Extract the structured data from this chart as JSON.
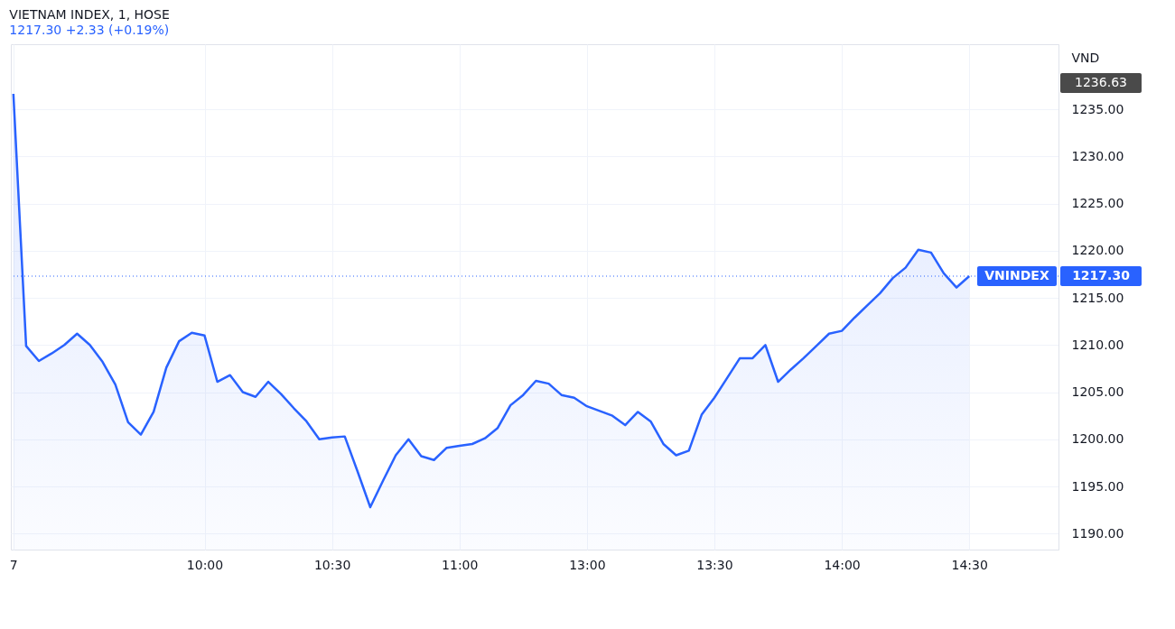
{
  "chart_data": {
    "type": "area",
    "title": "VIETNAM INDEX, 1, HOSE",
    "subtitle": "1217.30  +2.33 (+0.19%)",
    "ylabel": "VND",
    "categories": [
      "7",
      null,
      null,
      null,
      null,
      null,
      null,
      null,
      null,
      null,
      null,
      null,
      null,
      null,
      null,
      "10:00",
      null,
      null,
      null,
      null,
      null,
      null,
      null,
      null,
      null,
      "10:30",
      null,
      null,
      null,
      null,
      null,
      null,
      null,
      null,
      null,
      "11:00",
      null,
      null,
      null,
      null,
      null,
      null,
      null,
      null,
      null,
      "13:00",
      null,
      null,
      null,
      null,
      null,
      null,
      null,
      null,
      null,
      "13:30",
      null,
      null,
      null,
      null,
      null,
      null,
      null,
      null,
      null,
      "14:00",
      null,
      null,
      null,
      null,
      null,
      null,
      null,
      null,
      null,
      "14:30"
    ],
    "series": [
      {
        "color": "#2962ff",
        "values": [
          1236.63,
          1209.9,
          1208.3,
          1209.1,
          1210.0,
          1211.2,
          1210.0,
          1208.2,
          1205.8,
          1201.8,
          1200.5,
          1202.9,
          1207.6,
          1210.4,
          1211.3,
          1211.0,
          1206.1,
          1206.8,
          1205.0,
          1204.5,
          1206.1,
          1204.8,
          1203.3,
          1201.9,
          1200.0,
          1200.2,
          1200.3,
          1196.6,
          1192.8,
          1195.6,
          1198.3,
          1200.0,
          1198.2,
          1197.8,
          1199.1,
          1199.3,
          1199.5,
          1200.1,
          1201.2,
          1203.6,
          1204.7,
          1206.2,
          1205.9,
          1204.7,
          1204.4,
          1203.5,
          1203.0,
          1202.5,
          1201.5,
          1202.9,
          1201.9,
          1199.5,
          1198.3,
          1198.8,
          1202.6,
          1204.4,
          1206.5,
          1208.6,
          1208.6,
          1210.0,
          1206.1,
          1207.4,
          1208.6,
          1209.9,
          1211.2,
          1211.5,
          1212.9,
          1214.2,
          1215.5,
          1217.1,
          1218.2,
          1220.1,
          1219.8,
          1217.6,
          1216.1,
          1217.3
        ]
      }
    ],
    "ylim": [
      1188.3,
      1241.9
    ],
    "yticks": [
      {
        "value": 1190,
        "label": "1190.00"
      },
      {
        "value": 1195,
        "label": "1195.00"
      },
      {
        "value": 1200,
        "label": "1200.00"
      },
      {
        "value": 1205,
        "label": "1205.00"
      },
      {
        "value": 1210,
        "label": "1210.00"
      },
      {
        "value": 1215,
        "label": "1215.00"
      },
      {
        "value": 1220,
        "label": "1220.00"
      },
      {
        "value": 1225,
        "label": "1225.00"
      },
      {
        "value": 1230,
        "label": "1230.00"
      },
      {
        "value": 1235,
        "label": "1235.00"
      }
    ],
    "grid": true,
    "line_style": "solid",
    "ref_lines": [
      {
        "axis": "y",
        "value": 1217.3,
        "label": "1217.30",
        "color": "#2962ff",
        "line_style": "dotted"
      }
    ],
    "annotations": [
      {
        "text": "VNINDEX",
        "y": 1217.3
      },
      "1236.63"
    ]
  }
}
